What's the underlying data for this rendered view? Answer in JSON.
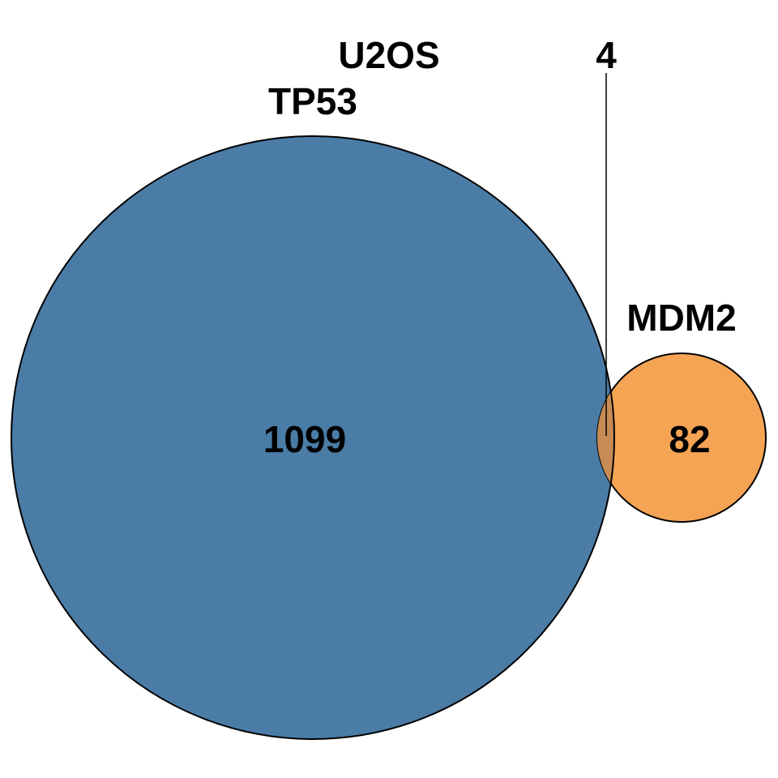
{
  "diagram": {
    "title": "U2OS",
    "sets": [
      {
        "name": "TP53",
        "count": "1099",
        "color": "#4a7ca6"
      },
      {
        "name": "MDM2",
        "count": "82",
        "color": "#f5a454"
      }
    ],
    "intersection": {
      "count": "4",
      "color": "#c98b55"
    }
  }
}
